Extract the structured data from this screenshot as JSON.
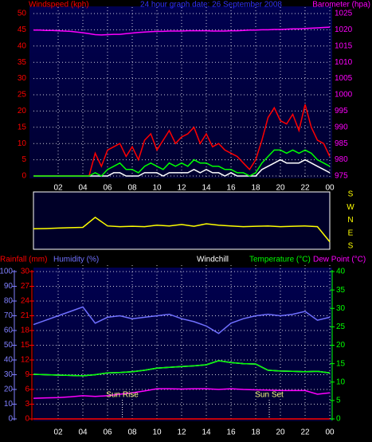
{
  "chart_data": [
    {
      "type": "line",
      "title": "24 hour graph date: 26 September 2008",
      "y_label": "Windspeed (kph)",
      "y2_label": "Barometer (hpa)",
      "x": [
        0,
        0.5,
        1,
        1.5,
        2,
        2.5,
        3,
        3.5,
        4,
        4.5,
        5,
        5.5,
        6,
        6.5,
        7,
        7.5,
        8,
        8.5,
        9,
        9.5,
        10,
        10.5,
        11,
        11.5,
        12,
        12.5,
        13,
        13.5,
        14,
        14.5,
        15,
        15.5,
        16,
        16.5,
        17,
        17.5,
        18,
        18.5,
        19,
        19.5,
        20,
        20.5,
        21,
        21.5,
        22,
        22.5,
        23,
        23.5,
        24
      ],
      "xlim": [
        0,
        24
      ],
      "xticks": [
        {
          "value": 2,
          "label": "02"
        },
        {
          "value": 4,
          "label": "04"
        },
        {
          "value": 6,
          "label": "06"
        },
        {
          "value": 8,
          "label": "08"
        },
        10,
        12,
        14,
        16,
        18,
        20,
        22,
        {
          "value": 24,
          "label": "00"
        }
      ],
      "ylim": [
        0,
        50
      ],
      "yticks": [
        0,
        5,
        10,
        15,
        20,
        25,
        30,
        35,
        40,
        45,
        50
      ],
      "y2lim": [
        975,
        1025
      ],
      "y2ticks": [
        975,
        980,
        985,
        990,
        995,
        1000,
        1005,
        1010,
        1015,
        1020,
        1025
      ],
      "grid": true,
      "series": [
        {
          "color": "#ffffff",
          "values": [
            0,
            0,
            0,
            0,
            0,
            0,
            0,
            0,
            0,
            0,
            0,
            0,
            0,
            1,
            1,
            0,
            0,
            0,
            1,
            1,
            1,
            0,
            1,
            1,
            1,
            1,
            2,
            1,
            2,
            1,
            1,
            0,
            1,
            0,
            0,
            0,
            0,
            2,
            3,
            4,
            5,
            4,
            4,
            4,
            5,
            4,
            3,
            2,
            1
          ]
        },
        {
          "color": "#ff0000",
          "values": [
            0,
            0,
            0,
            0,
            0,
            0,
            0,
            0,
            0,
            0,
            7,
            3,
            8,
            9,
            10,
            6,
            9,
            5,
            11,
            13,
            8,
            11,
            14,
            10,
            12,
            13,
            15,
            10,
            13,
            9,
            10,
            8,
            7,
            6,
            4,
            2,
            5,
            11,
            18,
            21,
            17,
            16,
            19,
            14,
            22,
            15,
            11,
            10,
            6
          ]
        },
        {
          "color": "#00ff00",
          "values": [
            0,
            0,
            0,
            0,
            0,
            0,
            0,
            0,
            0,
            0,
            1,
            0,
            2,
            3,
            4,
            2,
            2,
            1,
            3,
            4,
            3,
            2,
            4,
            3,
            4,
            3,
            5,
            4,
            4,
            3,
            3,
            2,
            2,
            1,
            1,
            0,
            1,
            4,
            6,
            8,
            8,
            7,
            8,
            7,
            8,
            7,
            5,
            4,
            3
          ]
        },
        {
          "color": "#ff00ff",
          "axis": "y2",
          "values": [
            1019.9,
            1019.9,
            1019.8,
            1019.8,
            1019.7,
            1019.6,
            1019.5,
            1019.3,
            1019.1,
            1018.8,
            1018.5,
            1018.4,
            1018.5,
            1018.6,
            1018.6,
            1018.8,
            1019.0,
            1019.2,
            1019.3,
            1019.4,
            1019.5,
            1019.5,
            1019.6,
            1019.6,
            1019.6,
            1019.7,
            1019.7,
            1019.7,
            1019.7,
            1019.6,
            1019.6,
            1019.6,
            1019.7,
            1019.7,
            1019.8,
            1019.9,
            1019.9,
            1020.0,
            1020.0,
            1020.1,
            1020.1,
            1020.2,
            1020.3,
            1020.3,
            1020.4,
            1020.5,
            1020.6,
            1020.7,
            1020.8
          ]
        }
      ]
    },
    {
      "type": "line",
      "x": [
        0,
        1,
        2,
        3,
        4,
        5,
        6,
        7,
        8,
        9,
        10,
        11,
        12,
        13,
        14,
        15,
        16,
        17,
        18,
        19,
        20,
        21,
        22,
        23,
        24
      ],
      "xlim": [
        0,
        24
      ],
      "ylim": [
        180,
        -180
      ],
      "yticks": [
        {
          "value": 180,
          "label": "S"
        },
        {
          "value": 90,
          "label": "E"
        },
        {
          "value": 0,
          "label": "N"
        },
        {
          "value": -90,
          "label": "W"
        },
        {
          "value": -180,
          "label": "S"
        }
      ],
      "series": [
        {
          "color": "#ffff00",
          "values": [
            60,
            58,
            55,
            52,
            50,
            -20,
            40,
            45,
            42,
            45,
            35,
            40,
            30,
            42,
            25,
            35,
            40,
            45,
            42,
            40,
            45,
            42,
            40,
            45,
            150
          ]
        }
      ]
    },
    {
      "type": "line",
      "x": [
        0,
        1,
        2,
        3,
        4,
        5,
        6,
        7,
        8,
        9,
        10,
        11,
        12,
        13,
        14,
        15,
        16,
        17,
        18,
        19,
        20,
        21,
        22,
        23,
        24
      ],
      "xlim": [
        0,
        24
      ],
      "xticks": [
        {
          "value": 2,
          "label": "02"
        },
        {
          "value": 4,
          "label": "04"
        },
        {
          "value": 6,
          "label": "06"
        },
        {
          "value": 8,
          "label": "08"
        },
        10,
        12,
        14,
        16,
        18,
        20,
        22,
        {
          "value": 24,
          "label": "00"
        }
      ],
      "ylim": [
        0,
        100
      ],
      "yticks": [
        0,
        10,
        20,
        30,
        40,
        50,
        60,
        70,
        80,
        90,
        100
      ],
      "y3lim": [
        0,
        30
      ],
      "y3ticks": [
        0,
        3,
        6,
        9,
        12,
        15,
        18,
        21,
        24,
        27,
        30
      ],
      "y2lim": [
        0,
        40
      ],
      "y2ticks": [
        0,
        5,
        10,
        15,
        20,
        25,
        30,
        35,
        40
      ],
      "grid": true,
      "series": [
        {
          "name": "Rainfall (mm)",
          "color": "#ff0000",
          "axis": "y3",
          "values": [
            0,
            0,
            0,
            0,
            0,
            0,
            0,
            0,
            0,
            0,
            0,
            0,
            0,
            0,
            0,
            0,
            0,
            0,
            0,
            0,
            0,
            0,
            0,
            0,
            0
          ]
        },
        {
          "name": "Humidity (%)",
          "color": "#7070ff",
          "values": [
            64,
            67,
            70,
            73,
            76,
            65,
            69,
            70,
            68,
            69,
            70,
            71,
            68,
            66,
            63,
            58,
            65,
            68,
            70,
            71,
            70,
            71,
            73,
            67,
            69
          ]
        },
        {
          "name": "Windchill",
          "color": "#ffffff",
          "axis": "y2",
          "values": [
            12.1,
            12.0,
            11.9,
            11.8,
            11.7,
            12.0,
            12.5,
            12.6,
            12.8,
            13.2,
            13.8,
            14.0,
            14.2,
            14.4,
            14.7,
            15.8,
            15.3,
            15.0,
            14.9,
            13.2,
            13.0,
            12.9,
            12.8,
            12.9,
            12.5
          ]
        },
        {
          "name": "Temperature (°C)",
          "color": "#00ff00",
          "axis": "y2",
          "values": [
            12.1,
            12.0,
            11.9,
            11.8,
            11.7,
            12.0,
            12.5,
            12.6,
            12.8,
            13.2,
            13.8,
            14.0,
            14.2,
            14.4,
            14.7,
            15.8,
            15.3,
            15.0,
            14.9,
            13.2,
            13.0,
            12.9,
            12.8,
            12.9,
            12.5
          ]
        },
        {
          "name": "Dew Point (°C)",
          "color": "#ff00ff",
          "axis": "y2",
          "values": [
            5.6,
            5.7,
            5.8,
            6.0,
            6.3,
            6.1,
            6.3,
            6.7,
            7.1,
            7.6,
            8.2,
            8.2,
            8.1,
            8.2,
            8.2,
            8.0,
            8.2,
            8.0,
            7.9,
            7.8,
            7.7,
            7.7,
            7.7,
            6.7,
            7.1
          ]
        }
      ],
      "annotations": [
        {
          "text": "Sun Rise",
          "x": 7.2
        },
        {
          "text": "Sun Set",
          "x": 19.1
        }
      ]
    }
  ]
}
